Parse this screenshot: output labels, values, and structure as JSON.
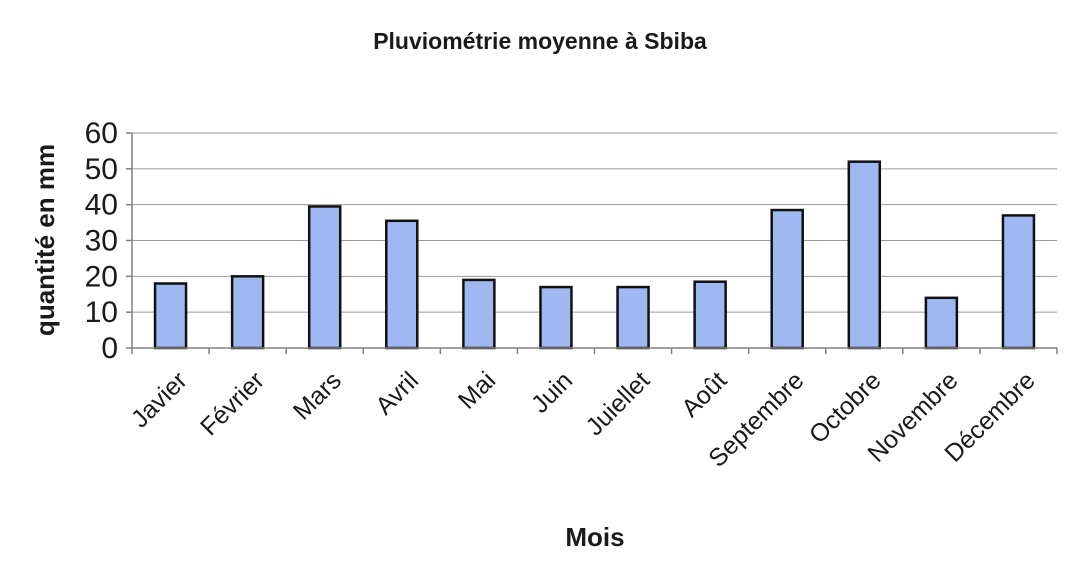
{
  "chart_data": {
    "type": "bar",
    "title": "Pluviométrie moyenne à Sbiba",
    "xlabel": "Mois",
    "ylabel": "quantité en mm",
    "categories": [
      "Javier",
      "Février",
      "Mars",
      "Avril",
      "Mai",
      "Juin",
      "Juiellet",
      "Août",
      "Septembre",
      "Octobre",
      "Novembre",
      "Décembre"
    ],
    "values": [
      18,
      20,
      39.5,
      35.5,
      19,
      17,
      17,
      18.5,
      38.5,
      52,
      14,
      37
    ],
    "ylim": [
      0,
      60
    ],
    "yticks": [
      "0",
      "10",
      "20",
      "30",
      "40",
      "50",
      "60"
    ],
    "grid": true,
    "legend": "none",
    "bar_color": "#9fb8f2"
  }
}
